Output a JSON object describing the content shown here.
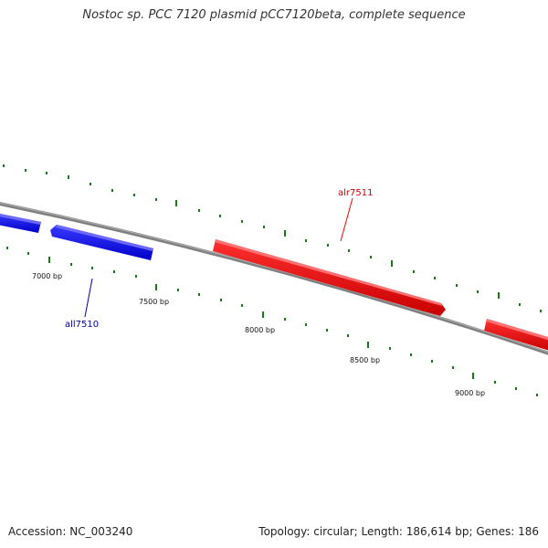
{
  "title": "Nostoc sp. PCC 7120 plasmid pCC7120beta, complete sequence",
  "footer": {
    "accession": "Accession: NC_003240",
    "summary": "Topology: circular; Length: 186,614 bp; Genes: 186"
  },
  "scale_labels": [
    "7000 bp",
    "7500 bp",
    "8000 bp",
    "8500 bp",
    "9000 bp"
  ],
  "genes": [
    {
      "name": "all7510",
      "strand": "minus",
      "color": "#0000ff"
    },
    {
      "name": "alr7511",
      "strand": "plus",
      "color": "#ff0000"
    }
  ],
  "colors": {
    "backbone": "#808080",
    "tick": "#1a7a1a",
    "minus_strand": "#0000ff",
    "plus_strand": "#ff0000"
  }
}
